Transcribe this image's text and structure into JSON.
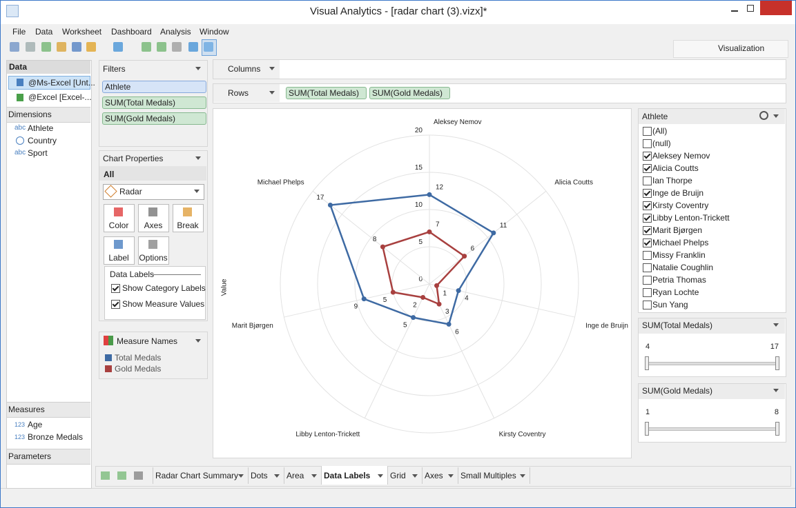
{
  "window": {
    "title": "Visual Analytics - [radar chart (3).vizx]*",
    "menu": [
      "File",
      "Data",
      "Worksheet",
      "Dashboard",
      "Analysis",
      "Window"
    ],
    "view_button": "Visualization"
  },
  "data_panel": {
    "title": "Data",
    "sources": [
      "@Ms-Excel [Unt...",
      "@Excel [Excel-..."
    ],
    "dimensions_title": "Dimensions",
    "dimensions": [
      {
        "type": "abc",
        "name": "Athlete"
      },
      {
        "name": "Country"
      },
      {
        "type": "abc",
        "name": "Sport"
      }
    ],
    "measures_title": "Measures",
    "measures": [
      {
        "type": "123",
        "name": "Age"
      },
      {
        "type": "123",
        "name": "Bronze Medals"
      }
    ],
    "parameters_title": "Parameters"
  },
  "filters": {
    "title": "Filters",
    "pills": [
      "Athlete",
      "SUM(Total Medals)",
      "SUM(Gold Medals)"
    ]
  },
  "chart_properties": {
    "title": "Chart Properties",
    "scope": "All",
    "chart_type": "Radar",
    "buttons": [
      "Color",
      "Axes",
      "Break",
      "Label",
      "Options"
    ],
    "data_labels_title": "Data Labels",
    "options": [
      {
        "label": "Show Category Labels",
        "checked": true
      },
      {
        "label": "Show Measure Values",
        "checked": true
      }
    ]
  },
  "measure_names": {
    "title": "Measure Names"
  },
  "shelves": {
    "columns": "Columns",
    "rows": "Rows",
    "row_pills": [
      "SUM(Total Medals)",
      "SUM(Gold Medals)"
    ]
  },
  "athlete_filter": {
    "title": "Athlete",
    "items": [
      {
        "label": "(All)",
        "checked": false
      },
      {
        "label": "(null)",
        "checked": false
      },
      {
        "label": "Aleksey Nemov",
        "checked": true
      },
      {
        "label": "Alicia Coutts",
        "checked": true
      },
      {
        "label": "Ian Thorpe",
        "checked": false
      },
      {
        "label": "Inge de Bruijn",
        "checked": true
      },
      {
        "label": "Kirsty Coventry",
        "checked": true
      },
      {
        "label": "Libby Lenton-Trickett",
        "checked": true
      },
      {
        "label": "Marit Bjørgen",
        "checked": true
      },
      {
        "label": "Michael Phelps",
        "checked": true
      },
      {
        "label": "Missy Franklin",
        "checked": false
      },
      {
        "label": "Natalie Coughlin",
        "checked": false
      },
      {
        "label": "Petria Thomas",
        "checked": false
      },
      {
        "label": "Ryan Lochte",
        "checked": false
      },
      {
        "label": "Sun Yang",
        "checked": false
      }
    ]
  },
  "sliders": [
    {
      "title": "SUM(Total Medals)",
      "min": 4,
      "max": 17
    },
    {
      "title": "SUM(Gold Medals)",
      "min": 1,
      "max": 8
    }
  ],
  "tabs": {
    "items": [
      "Radar Chart Summary",
      "Dots",
      "Area",
      "Data Labels",
      "Grid",
      "Axes",
      "Small Multiples"
    ],
    "active": 3
  },
  "chart_data": {
    "type": "radar",
    "axis_label": "Value",
    "categories": [
      "Aleksey Nemov",
      "Alicia Coutts",
      "Inge de Bruijn",
      "Kirsty Coventry",
      "Libby Lenton-Trickett",
      "Marit Bjørgen",
      "Michael Phelps"
    ],
    "series": [
      {
        "name": "Total Medals",
        "color": "#3e6aa3",
        "values": [
          12,
          11,
          4,
          6,
          5,
          9,
          17
        ]
      },
      {
        "name": "Gold Medals",
        "color": "#a8403f",
        "values": [
          7,
          6,
          1,
          3,
          2,
          5,
          8
        ]
      }
    ],
    "rlim": [
      0,
      20
    ],
    "rticks": [
      0,
      5,
      10,
      15,
      20
    ],
    "grid": true
  }
}
